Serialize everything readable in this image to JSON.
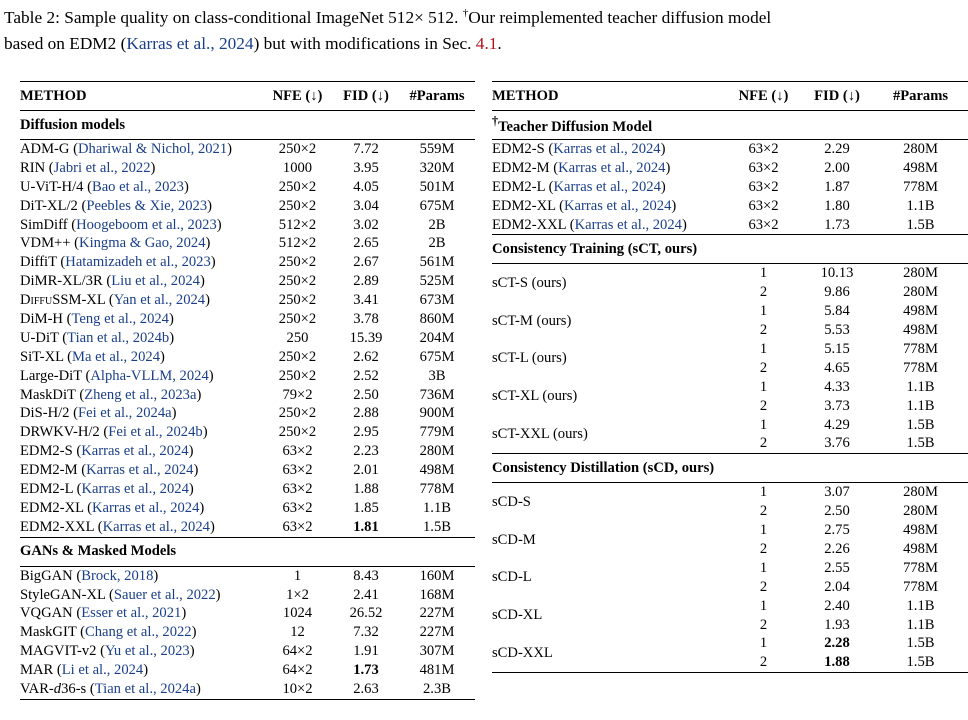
{
  "caption": {
    "prefix": "Table 2:",
    "text1": " Sample quality on class-conditional ImageNet 512× 512. ",
    "dagger": "†",
    "text2": "Our reimplemented teacher diffusion model",
    "line2_a": "based on EDM2 (",
    "line2_cite": "Karras et al., 2024",
    "line2_b": ") but with modifications in Sec. ",
    "line2_ref": "4.1",
    "line2_c": "."
  },
  "headers": {
    "method": "METHOD",
    "nfe": "NFE (↓)",
    "fid": "FID (↓)",
    "params": "#Params"
  },
  "left": {
    "diffusion_title": "Diffusion models",
    "diffusion": [
      {
        "name": "ADM-G",
        "cite": "Dhariwal & Nichol, 2021",
        "nfe": "250×2",
        "fid": "7.72",
        "params": "559M"
      },
      {
        "name": "RIN",
        "cite": "Jabri et al., 2022",
        "nfe": "1000",
        "fid": "3.95",
        "params": "320M"
      },
      {
        "name": "U-ViT-H/4",
        "cite": "Bao et al., 2023",
        "nfe": "250×2",
        "fid": "4.05",
        "params": "501M"
      },
      {
        "name": "DiT-XL/2",
        "cite": "Peebles & Xie, 2023",
        "nfe": "250×2",
        "fid": "3.04",
        "params": "675M"
      },
      {
        "name": "SimDiff",
        "cite": "Hoogeboom et al., 2023",
        "nfe": "512×2",
        "fid": "3.02",
        "params": "2B"
      },
      {
        "name": "VDM++",
        "cite": "Kingma & Gao, 2024",
        "nfe": "512×2",
        "fid": "2.65",
        "params": "2B"
      },
      {
        "name": "DiffiT",
        "cite": "Hatamizadeh et al., 2023",
        "nfe": "250×2",
        "fid": "2.67",
        "params": "561M"
      },
      {
        "name": "DiMR-XL/3R",
        "cite": "Liu et al., 2024",
        "nfe": "250×2",
        "fid": "2.89",
        "params": "525M"
      },
      {
        "name_sc": "DiffuSSM",
        "name_rest": "-XL",
        "cite": "Yan et al., 2024",
        "nfe": "250×2",
        "fid": "3.41",
        "params": "673M"
      },
      {
        "name": "DiM-H",
        "cite": "Teng et al., 2024",
        "nfe": "250×2",
        "fid": "3.78",
        "params": "860M"
      },
      {
        "name": "U-DiT",
        "cite": "Tian et al., 2024b",
        "nfe": "250",
        "fid": "15.39",
        "params": "204M"
      },
      {
        "name": "SiT-XL",
        "cite": "Ma et al., 2024",
        "nfe": "250×2",
        "fid": "2.62",
        "params": "675M"
      },
      {
        "name": "Large-DiT",
        "cite": "Alpha-VLLM, 2024",
        "nfe": "250×2",
        "fid": "2.52",
        "params": "3B"
      },
      {
        "name": "MaskDiT",
        "cite": "Zheng et al., 2023a",
        "nfe": "79×2",
        "fid": "2.50",
        "params": "736M"
      },
      {
        "name": "DiS-H/2",
        "cite": "Fei et al., 2024a",
        "nfe": "250×2",
        "fid": "2.88",
        "params": "900M"
      },
      {
        "name": "DRWKV-H/2",
        "cite": "Fei et al., 2024b",
        "nfe": "250×2",
        "fid": "2.95",
        "params": "779M"
      },
      {
        "name": "EDM2-S",
        "cite": "Karras et al., 2024",
        "nfe": "63×2",
        "fid": "2.23",
        "params": "280M"
      },
      {
        "name": "EDM2-M",
        "cite": "Karras et al., 2024",
        "nfe": "63×2",
        "fid": "2.01",
        "params": "498M"
      },
      {
        "name": "EDM2-L",
        "cite": "Karras et al., 2024",
        "nfe": "63×2",
        "fid": "1.88",
        "params": "778M"
      },
      {
        "name": "EDM2-XL",
        "cite": "Karras et al., 2024",
        "nfe": "63×2",
        "fid": "1.85",
        "params": "1.1B"
      },
      {
        "name": "EDM2-XXL",
        "cite": "Karras et al., 2024",
        "nfe": "63×2",
        "fid": "1.81",
        "params": "1.5B"
      }
    ],
    "gans_title": "GANs & Masked Models",
    "gans": [
      {
        "name": "BigGAN",
        "cite": "Brock, 2018",
        "nfe": "1",
        "fid": "8.43",
        "params": "160M"
      },
      {
        "name": "StyleGAN-XL",
        "cite": "Sauer et al., 2022",
        "nfe": "1×2",
        "fid": "2.41",
        "params": "168M"
      },
      {
        "name": "VQGAN",
        "cite": "Esser et al., 2021",
        "nfe": "1024",
        "fid": "26.52",
        "params": "227M"
      },
      {
        "name": "MaskGIT",
        "cite": "Chang et al., 2022",
        "nfe": "12",
        "fid": "7.32",
        "params": "227M"
      },
      {
        "name": "MAGVIT-v2",
        "cite": "Yu et al., 2023",
        "nfe": "64×2",
        "fid": "1.91",
        "params": "307M"
      },
      {
        "name": "MAR",
        "cite": "Li et al., 2024",
        "nfe": "64×2",
        "fid": "1.73",
        "params": "481M"
      },
      {
        "name_pre": "VAR-",
        "name_it": "d",
        "name_rest": "36-s",
        "cite": "Tian et al., 2024a",
        "nfe": "10×2",
        "fid": "2.63",
        "params": "2.3B"
      }
    ]
  },
  "right": {
    "teacher_dagger": "†",
    "teacher_title": "Teacher Diffusion Model",
    "teacher": [
      {
        "name": "EDM2-S",
        "cite": "Karras et al., 2024",
        "nfe": "63×2",
        "fid": "2.29",
        "params": "280M"
      },
      {
        "name": "EDM2-M",
        "cite": "Karras et al., 2024",
        "nfe": "63×2",
        "fid": "2.00",
        "params": "498M"
      },
      {
        "name": "EDM2-L",
        "cite": "Karras et al., 2024",
        "nfe": "63×2",
        "fid": "1.87",
        "params": "778M"
      },
      {
        "name": "EDM2-XL",
        "cite": "Karras et al., 2024",
        "nfe": "63×2",
        "fid": "1.80",
        "params": "1.1B"
      },
      {
        "name": "EDM2-XXL",
        "cite": "Karras et al., 2024",
        "nfe": "63×2",
        "fid": "1.73",
        "params": "1.5B"
      }
    ],
    "sct_title": "Consistency Training (sCT, ours)",
    "sct": [
      {
        "name": "sCT-S (ours)",
        "rows": [
          {
            "nfe": "1",
            "fid": "10.13",
            "params": "280M"
          },
          {
            "nfe": "2",
            "fid": "9.86",
            "params": "280M"
          }
        ]
      },
      {
        "name": "sCT-M (ours)",
        "rows": [
          {
            "nfe": "1",
            "fid": "5.84",
            "params": "498M"
          },
          {
            "nfe": "2",
            "fid": "5.53",
            "params": "498M"
          }
        ]
      },
      {
        "name": "sCT-L (ours)",
        "rows": [
          {
            "nfe": "1",
            "fid": "5.15",
            "params": "778M"
          },
          {
            "nfe": "2",
            "fid": "4.65",
            "params": "778M"
          }
        ]
      },
      {
        "name": "sCT-XL (ours)",
        "rows": [
          {
            "nfe": "1",
            "fid": "4.33",
            "params": "1.1B"
          },
          {
            "nfe": "2",
            "fid": "3.73",
            "params": "1.1B"
          }
        ]
      },
      {
        "name": "sCT-XXL (ours)",
        "rows": [
          {
            "nfe": "1",
            "fid": "4.29",
            "params": "1.5B"
          },
          {
            "nfe": "2",
            "fid": "3.76",
            "params": "1.5B"
          }
        ]
      }
    ],
    "scd_title": "Consistency Distillation (sCD, ours)",
    "scd": [
      {
        "name": "sCD-S",
        "rows": [
          {
            "nfe": "1",
            "fid": "3.07",
            "params": "280M"
          },
          {
            "nfe": "2",
            "fid": "2.50",
            "params": "280M"
          }
        ]
      },
      {
        "name": "sCD-M",
        "rows": [
          {
            "nfe": "1",
            "fid": "2.75",
            "params": "498M"
          },
          {
            "nfe": "2",
            "fid": "2.26",
            "params": "498M"
          }
        ]
      },
      {
        "name": "sCD-L",
        "rows": [
          {
            "nfe": "1",
            "fid": "2.55",
            "params": "778M"
          },
          {
            "nfe": "2",
            "fid": "2.04",
            "params": "778M"
          }
        ]
      },
      {
        "name": "sCD-XL",
        "rows": [
          {
            "nfe": "1",
            "fid": "2.40",
            "params": "1.1B"
          },
          {
            "nfe": "2",
            "fid": "1.93",
            "params": "1.1B"
          }
        ]
      },
      {
        "name": "sCD-XXL",
        "rows": [
          {
            "nfe": "1",
            "fid": "2.28",
            "params": "1.5B"
          },
          {
            "nfe": "2",
            "fid": "1.88",
            "params": "1.5B"
          }
        ]
      }
    ]
  }
}
